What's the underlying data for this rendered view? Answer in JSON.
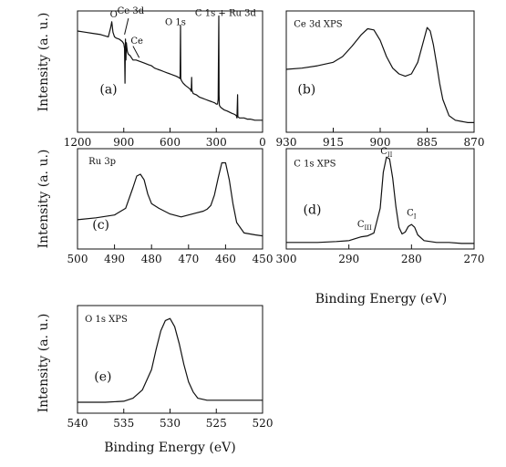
{
  "figure": {
    "ylabel": "Intensity (a. u.)",
    "xlabel": "Binding Energy (eV)"
  },
  "chart_data": [
    {
      "id": "a",
      "type": "line",
      "panel_label": "(a)",
      "title": "",
      "ylabel": "Intensity (a. u.)",
      "xlim": [
        1200,
        0
      ],
      "xticks": [
        1200,
        900,
        600,
        300,
        0
      ],
      "ylim": [
        0,
        100
      ],
      "annotations": [
        {
          "text": "O",
          "x": 965,
          "y": 97
        },
        {
          "text": "Ce 3d",
          "x": 855,
          "y": 100
        },
        {
          "text": "Ce",
          "x": 815,
          "y": 74
        },
        {
          "text": "O 1s",
          "x": 565,
          "y": 90
        },
        {
          "text": "C 1s + Ru 3d",
          "x": 240,
          "y": 98
        }
      ],
      "series": [
        {
          "x": [
            1200,
            1150,
            1100,
            1050,
            1000,
            985,
            978,
            970,
            960,
            950,
            930,
            910,
            900,
            895,
            892,
            889,
            886,
            883,
            880,
            876,
            870,
            860,
            850,
            840,
            820,
            800,
            780,
            760,
            740,
            720,
            700,
            680,
            660,
            640,
            620,
            600,
            580,
            560,
            545,
            535,
            532,
            530,
            528,
            525,
            515,
            500,
            480,
            470,
            462,
            460,
            458,
            450,
            430,
            410,
            390,
            370,
            350,
            330,
            310,
            300,
            292,
            288,
            286,
            284,
            282,
            280,
            276,
            270,
            250,
            230,
            200,
            180,
            170,
            166,
            162,
            160,
            150,
            120,
            100,
            80,
            50,
            20,
            0
          ],
          "y": [
            85,
            84,
            83,
            82,
            80,
            88,
            93,
            84,
            80,
            79,
            78,
            76,
            74,
            70,
            40,
            78,
            60,
            75,
            71,
            67,
            65,
            64,
            62,
            60,
            60,
            59,
            58,
            57,
            56,
            55,
            53,
            52,
            51,
            50,
            49,
            48,
            47,
            46,
            45,
            44,
            90,
            44,
            43,
            42,
            40,
            38,
            36,
            35,
            33,
            45,
            34,
            31,
            30,
            28,
            27,
            26,
            25,
            24,
            23,
            22,
            22,
            26,
            60,
            98,
            30,
            21,
            20,
            19,
            17,
            16,
            14,
            13,
            12,
            10,
            30,
            11,
            10,
            10,
            9,
            9,
            8,
            8,
            8
          ]
        }
      ]
    },
    {
      "id": "b",
      "type": "line",
      "panel_label": "(b)",
      "title": "Ce 3d XPS",
      "xlim": [
        930,
        870
      ],
      "xticks": [
        930,
        915,
        900,
        885,
        870
      ],
      "ylim": [
        0,
        100
      ],
      "series": [
        {
          "x": [
            930,
            925,
            920,
            915,
            912,
            909,
            906,
            904,
            902,
            900,
            898,
            896,
            894,
            892,
            890,
            888,
            886,
            885,
            884,
            883,
            882,
            881,
            880,
            878,
            876,
            874,
            872,
            870
          ],
          "y": [
            52,
            53,
            55,
            58,
            63,
            72,
            82,
            87,
            86,
            77,
            63,
            53,
            48,
            46,
            48,
            58,
            78,
            88,
            85,
            73,
            57,
            40,
            26,
            12,
            8,
            7,
            6,
            6
          ]
        }
      ]
    },
    {
      "id": "c",
      "type": "line",
      "panel_label": "(c)",
      "title": "Ru 3p",
      "xlim": [
        500,
        450
      ],
      "xticks": [
        500,
        490,
        480,
        470,
        460,
        450
      ],
      "ylim": [
        0,
        100
      ],
      "series": [
        {
          "x": [
            500,
            495,
            490,
            487,
            485,
            484,
            483,
            482,
            481,
            480,
            478,
            475,
            472,
            470,
            468,
            466,
            465,
            464,
            463,
            462,
            461,
            460,
            459,
            458,
            457,
            455,
            452,
            450
          ],
          "y": [
            28,
            30,
            33,
            40,
            62,
            74,
            76,
            70,
            55,
            45,
            40,
            34,
            31,
            33,
            35,
            37,
            39,
            43,
            54,
            72,
            88,
            88,
            70,
            45,
            25,
            14,
            12,
            11
          ]
        }
      ]
    },
    {
      "id": "d",
      "type": "line",
      "panel_label": "(d)",
      "title": "C 1s XPS",
      "xlim": [
        300,
        270
      ],
      "xticks": [
        300,
        290,
        280,
        270
      ],
      "ylim": [
        0,
        100
      ],
      "annotations": [
        {
          "text": "C",
          "sub": "III",
          "x": 287.5,
          "y": 20
        },
        {
          "text": "C",
          "sub": "II",
          "x": 284,
          "y": 97
        },
        {
          "text": "C",
          "sub": "I",
          "x": 280,
          "y": 32
        }
      ],
      "series": [
        {
          "x": [
            300,
            295,
            292,
            290,
            289,
            288,
            287,
            286,
            285,
            284.5,
            284,
            283.5,
            283,
            282.5,
            282,
            281.5,
            281,
            280.5,
            280,
            279.5,
            279,
            278,
            276,
            274,
            272,
            270
          ],
          "y": [
            4,
            4,
            5,
            6,
            8,
            10,
            11,
            14,
            40,
            78,
            94,
            92,
            72,
            42,
            20,
            13,
            15,
            21,
            23,
            20,
            12,
            6,
            4,
            4,
            3,
            3
          ]
        }
      ]
    },
    {
      "id": "e",
      "type": "line",
      "panel_label": "(e)",
      "title": "O 1s XPS",
      "xlabel": "Binding Energy (eV)",
      "xlim": [
        540,
        520
      ],
      "xticks": [
        540,
        535,
        530,
        525,
        520
      ],
      "ylim": [
        0,
        100
      ],
      "series": [
        {
          "x": [
            540,
            537,
            535,
            534,
            533,
            532,
            531.5,
            531,
            530.5,
            530,
            529.5,
            529,
            528.5,
            528,
            527.5,
            527,
            526,
            524,
            522,
            520
          ],
          "y": [
            8,
            8,
            9,
            12,
            20,
            40,
            60,
            78,
            88,
            90,
            82,
            65,
            45,
            28,
            18,
            12,
            10,
            10,
            10,
            10
          ]
        }
      ]
    }
  ]
}
